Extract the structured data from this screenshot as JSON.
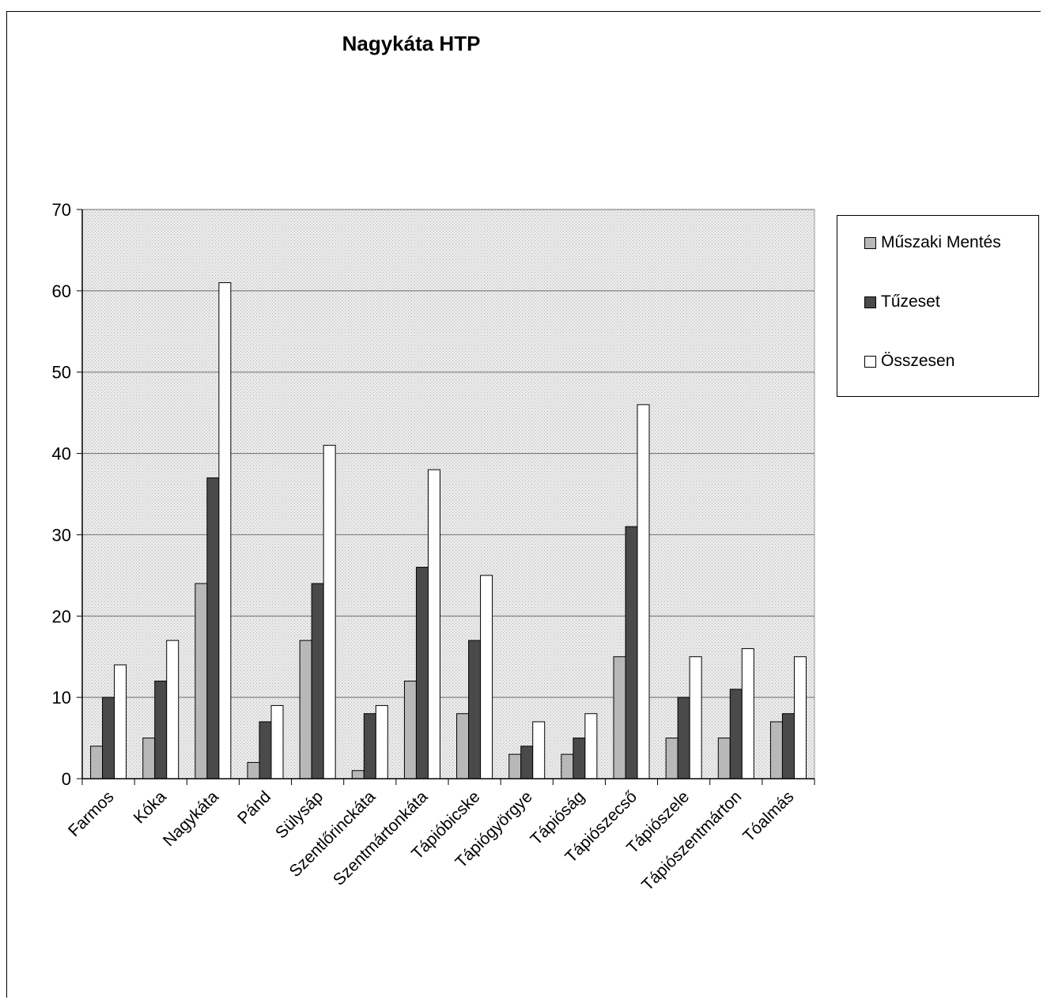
{
  "chart_data": {
    "type": "bar",
    "title": "Nagykáta HTP",
    "xlabel": "",
    "ylabel": "",
    "ylim": [
      0,
      70
    ],
    "yticks": [
      0,
      10,
      20,
      30,
      40,
      50,
      60,
      70
    ],
    "grid": true,
    "legend": "right",
    "categories": [
      "Farmos",
      "Kóka",
      "Nagykáta",
      "Pánd",
      "Sülysáp",
      "Szentlőrinckáta",
      "Szentmártonkáta",
      "Tápióbicske",
      "Tápiógyörgye",
      "Tápióság",
      "Tápiószecső",
      "Tápiószele",
      "Tápiószentmárton",
      "Tóalmás"
    ],
    "series": [
      {
        "name": "Műszaki Mentés",
        "color": "#b8b8b8",
        "values": [
          4,
          5,
          24,
          2,
          17,
          1,
          12,
          8,
          3,
          3,
          15,
          5,
          5,
          7
        ]
      },
      {
        "name": "Tűzeset",
        "color": "#4a4a4a",
        "values": [
          10,
          12,
          37,
          7,
          24,
          8,
          26,
          17,
          4,
          5,
          31,
          10,
          11,
          8
        ]
      },
      {
        "name": "Összesen",
        "color": "#ffffff",
        "values": [
          14,
          17,
          61,
          9,
          41,
          9,
          38,
          25,
          7,
          8,
          46,
          15,
          16,
          15
        ]
      }
    ]
  }
}
